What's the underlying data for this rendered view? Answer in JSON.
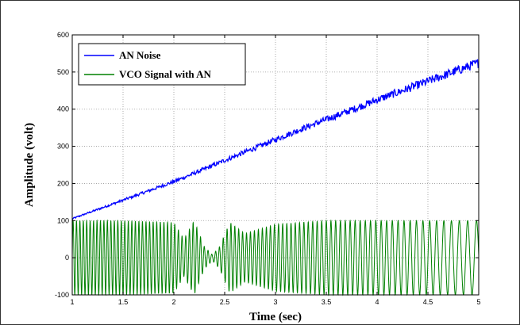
{
  "chart_data": {
    "type": "line",
    "title": "",
    "xlabel": "Time (sec)",
    "ylabel": "Amplitude (volt)",
    "xlim": [
      1,
      5
    ],
    "ylim": [
      -100,
      600
    ],
    "xticks": [
      "1",
      "1.5",
      "2",
      "2.5",
      "3",
      "3.5",
      "4",
      "4.5",
      "5"
    ],
    "yticks": [
      "-100",
      "0",
      "100",
      "200",
      "300",
      "400",
      "500",
      "600"
    ],
    "grid": true,
    "legend_position": "top-left",
    "series": [
      {
        "name": "AN Noise",
        "color": "#0000ff",
        "x": [
          1.0,
          1.25,
          1.5,
          1.75,
          2.0,
          2.25,
          2.5,
          2.75,
          3.0,
          3.25,
          3.5,
          3.75,
          4.0,
          4.25,
          4.5,
          4.75,
          5.0
        ],
        "y": [
          105,
          130,
          155,
          180,
          205,
          233,
          262,
          290,
          318,
          346,
          372,
          398,
          425,
          450,
          475,
          500,
          525
        ]
      },
      {
        "name": "VCO Signal with AN",
        "color": "#008000",
        "x_range": [
          1,
          5
        ],
        "amplitude_envelope": {
          "x": [
            1.0,
            1.5,
            2.0,
            2.1,
            2.2,
            2.3,
            2.38,
            2.45,
            2.55,
            2.7,
            3.0,
            3.5,
            4.0,
            4.5,
            5.0
          ],
          "y": [
            100,
            100,
            95,
            50,
            100,
            30,
            8,
            30,
            95,
            65,
            90,
            100,
            100,
            100,
            100
          ]
        },
        "cycles_per_second": {
          "x": [
            1.0,
            2.0,
            3.0,
            4.0,
            5.0
          ],
          "y": [
            30,
            28,
            25,
            19,
            11
          ]
        }
      }
    ]
  }
}
